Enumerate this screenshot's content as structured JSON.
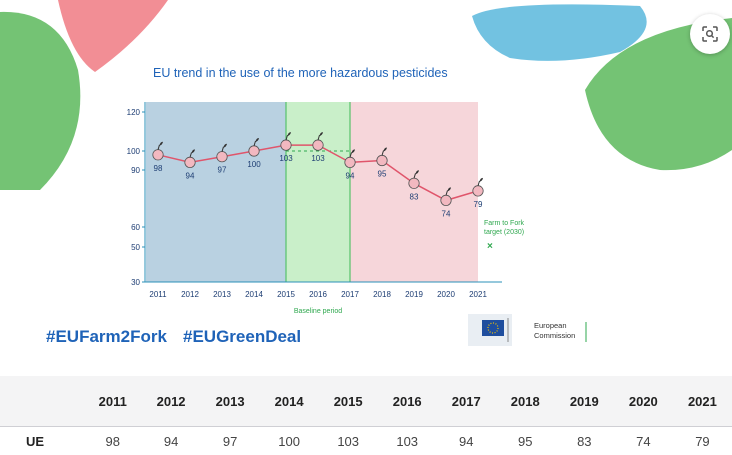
{
  "lens_button": {
    "icon": "visual-search-icon"
  },
  "hashtags": [
    "#EUFarm2Fork",
    "#EUGreenDeal"
  ],
  "logo": {
    "text_line1": "European",
    "text_line2": "Commission"
  },
  "colors": {
    "title": "#1f63b8",
    "line": "#e0556b",
    "blue_region": "#b9d1e1",
    "green_region": "#c9efc9",
    "pink_region": "#f6d6da",
    "target": "#2fa84f"
  },
  "chart_data": {
    "type": "line",
    "title": "EU trend in the use of the more hazardous pesticides",
    "x": [
      2011,
      2012,
      2013,
      2014,
      2015,
      2016,
      2017,
      2018,
      2019,
      2020,
      2021
    ],
    "values": [
      98,
      94,
      97,
      100,
      103,
      103,
      94,
      95,
      83,
      74,
      79
    ],
    "y_ticks": [
      120,
      100,
      90,
      60,
      50,
      30
    ],
    "ylim": [
      30,
      120
    ],
    "baseline_label": "Baseline period",
    "baseline_period": [
      2015,
      2017
    ],
    "target_label_line1": "Farm to Fork",
    "target_label_line2": "target (2030)",
    "grid": false
  },
  "table": {
    "headers": [
      "",
      "2011",
      "2012",
      "2013",
      "2014",
      "2015",
      "2016",
      "2017",
      "2018",
      "2019",
      "2020",
      "2021"
    ],
    "rows": [
      {
        "label": "UE",
        "values": [
          "98",
          "94",
          "97",
          "100",
          "103",
          "103",
          "94",
          "95",
          "83",
          "74",
          "79"
        ]
      }
    ]
  }
}
